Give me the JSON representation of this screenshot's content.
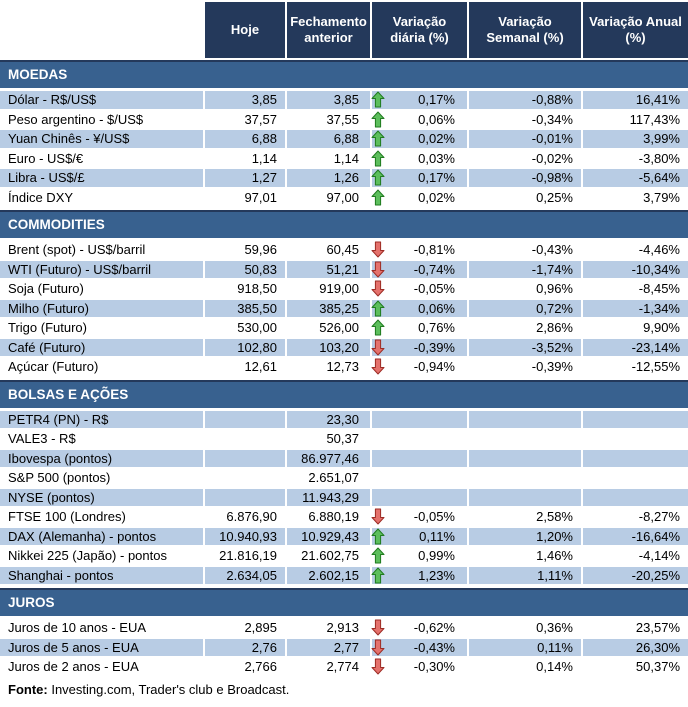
{
  "chart_data": {
    "type": "table",
    "columns": [
      "",
      "Hoje",
      "Fechamento anterior",
      "Variação diária (%)",
      "Variação Semanal (%)",
      "Variação Anual (%)"
    ],
    "sections": [
      {
        "title": "MOEDAS",
        "rows": [
          {
            "label": "Dólar - R$/US$",
            "hoje": "3,85",
            "fechamento": "3,85",
            "arrow": "up",
            "diaria": "0,17%",
            "semanal": "-0,88%",
            "anual": "16,41%"
          },
          {
            "label": "Peso argentino - $/US$",
            "hoje": "37,57",
            "fechamento": "37,55",
            "arrow": "up",
            "diaria": "0,06%",
            "semanal": "-0,34%",
            "anual": "117,43%"
          },
          {
            "label": "Yuan Chinês - ¥/US$",
            "hoje": "6,88",
            "fechamento": "6,88",
            "arrow": "up",
            "diaria": "0,02%",
            "semanal": "-0,01%",
            "anual": "3,99%"
          },
          {
            "label": "Euro - US$/€",
            "hoje": "1,14",
            "fechamento": "1,14",
            "arrow": "up",
            "diaria": "0,03%",
            "semanal": "-0,02%",
            "anual": "-3,80%"
          },
          {
            "label": "Libra - US$/£",
            "hoje": "1,27",
            "fechamento": "1,26",
            "arrow": "up",
            "diaria": "0,17%",
            "semanal": "-0,98%",
            "anual": "-5,64%"
          },
          {
            "label": "Índice DXY",
            "hoje": "97,01",
            "fechamento": "97,00",
            "arrow": "up",
            "diaria": "0,02%",
            "semanal": "0,25%",
            "anual": "3,79%"
          }
        ]
      },
      {
        "title": "COMMODITIES",
        "rows": [
          {
            "label": "Brent (spot) - US$/barril",
            "hoje": "59,96",
            "fechamento": "60,45",
            "arrow": "down",
            "diaria": "-0,81%",
            "semanal": "-0,43%",
            "anual": "-4,46%"
          },
          {
            "label": "WTI (Futuro) - US$/barril",
            "hoje": "50,83",
            "fechamento": "51,21",
            "arrow": "down",
            "diaria": "-0,74%",
            "semanal": "-1,74%",
            "anual": "-10,34%"
          },
          {
            "label": "Soja (Futuro)",
            "hoje": "918,50",
            "fechamento": "919,00",
            "arrow": "down",
            "diaria": "-0,05%",
            "semanal": "0,96%",
            "anual": "-8,45%"
          },
          {
            "label": "Milho (Futuro)",
            "hoje": "385,50",
            "fechamento": "385,25",
            "arrow": "up",
            "diaria": "0,06%",
            "semanal": "0,72%",
            "anual": "-1,34%"
          },
          {
            "label": "Trigo (Futuro)",
            "hoje": "530,00",
            "fechamento": "526,00",
            "arrow": "up",
            "diaria": "0,76%",
            "semanal": "2,86%",
            "anual": "9,90%"
          },
          {
            "label": "Café (Futuro)",
            "hoje": "102,80",
            "fechamento": "103,20",
            "arrow": "down",
            "diaria": "-0,39%",
            "semanal": "-3,52%",
            "anual": "-23,14%"
          },
          {
            "label": "Açúcar (Futuro)",
            "hoje": "12,61",
            "fechamento": "12,73",
            "arrow": "down",
            "diaria": "-0,94%",
            "semanal": "-0,39%",
            "anual": "-12,55%"
          }
        ]
      },
      {
        "title": "BOLSAS E AÇÕES",
        "rows": [
          {
            "label": "PETR4 (PN) - R$",
            "hoje": "",
            "fechamento": "23,30",
            "arrow": "",
            "diaria": "",
            "semanal": "",
            "anual": ""
          },
          {
            "label": "VALE3 - R$",
            "hoje": "",
            "fechamento": "50,37",
            "arrow": "",
            "diaria": "",
            "semanal": "",
            "anual": ""
          },
          {
            "label": "Ibovespa (pontos)",
            "hoje": "",
            "fechamento": "86.977,46",
            "arrow": "",
            "diaria": "",
            "semanal": "",
            "anual": ""
          },
          {
            "label": "S&P 500 (pontos)",
            "hoje": "",
            "fechamento": "2.651,07",
            "arrow": "",
            "diaria": "",
            "semanal": "",
            "anual": ""
          },
          {
            "label": "NYSE (pontos)",
            "hoje": "",
            "fechamento": "11.943,29",
            "arrow": "",
            "diaria": "",
            "semanal": "",
            "anual": ""
          },
          {
            "label": "FTSE 100 (Londres)",
            "hoje": "6.876,90",
            "fechamento": "6.880,19",
            "arrow": "down",
            "diaria": "-0,05%",
            "semanal": "2,58%",
            "anual": "-8,27%"
          },
          {
            "label": "DAX (Alemanha) - pontos",
            "hoje": "10.940,93",
            "fechamento": "10.929,43",
            "arrow": "up",
            "diaria": "0,11%",
            "semanal": "1,20%",
            "anual": "-16,64%"
          },
          {
            "label": "Nikkei 225 (Japão) - pontos",
            "hoje": "21.816,19",
            "fechamento": "21.602,75",
            "arrow": "up",
            "diaria": "0,99%",
            "semanal": "1,46%",
            "anual": "-4,14%"
          },
          {
            "label": "Shanghai - pontos",
            "hoje": "2.634,05",
            "fechamento": "2.602,15",
            "arrow": "up",
            "diaria": "1,23%",
            "semanal": "1,11%",
            "anual": "-20,25%"
          }
        ]
      },
      {
        "title": "JUROS",
        "rows": [
          {
            "label": "Juros de 10 anos - EUA",
            "hoje": "2,895",
            "fechamento": "2,913",
            "arrow": "down",
            "diaria": "-0,62%",
            "semanal": "0,36%",
            "anual": "23,57%"
          },
          {
            "label": "Juros de 5 anos - EUA",
            "hoje": "2,76",
            "fechamento": "2,77",
            "arrow": "down",
            "diaria": "-0,43%",
            "semanal": "0,11%",
            "anual": "26,30%"
          },
          {
            "label": "Juros de 2 anos - EUA",
            "hoje": "2,766",
            "fechamento": "2,774",
            "arrow": "down",
            "diaria": "-0,30%",
            "semanal": "0,14%",
            "anual": "50,37%"
          }
        ]
      }
    ]
  },
  "footer": {
    "label": "Fonte:",
    "text": " Investing.com, Trader's club e Broadcast."
  },
  "colors": {
    "header_navy": "#24395B",
    "section_bar_blue": "#38618F",
    "row_light_blue": "#B8CCE4",
    "arrow_up_fill": "#5CBE5C",
    "arrow_up_stroke": "#1F7A1F",
    "arrow_down_fill": "#E4716C",
    "arrow_down_stroke": "#9C2B24",
    "cell_border_white": "#FFFFFF"
  }
}
